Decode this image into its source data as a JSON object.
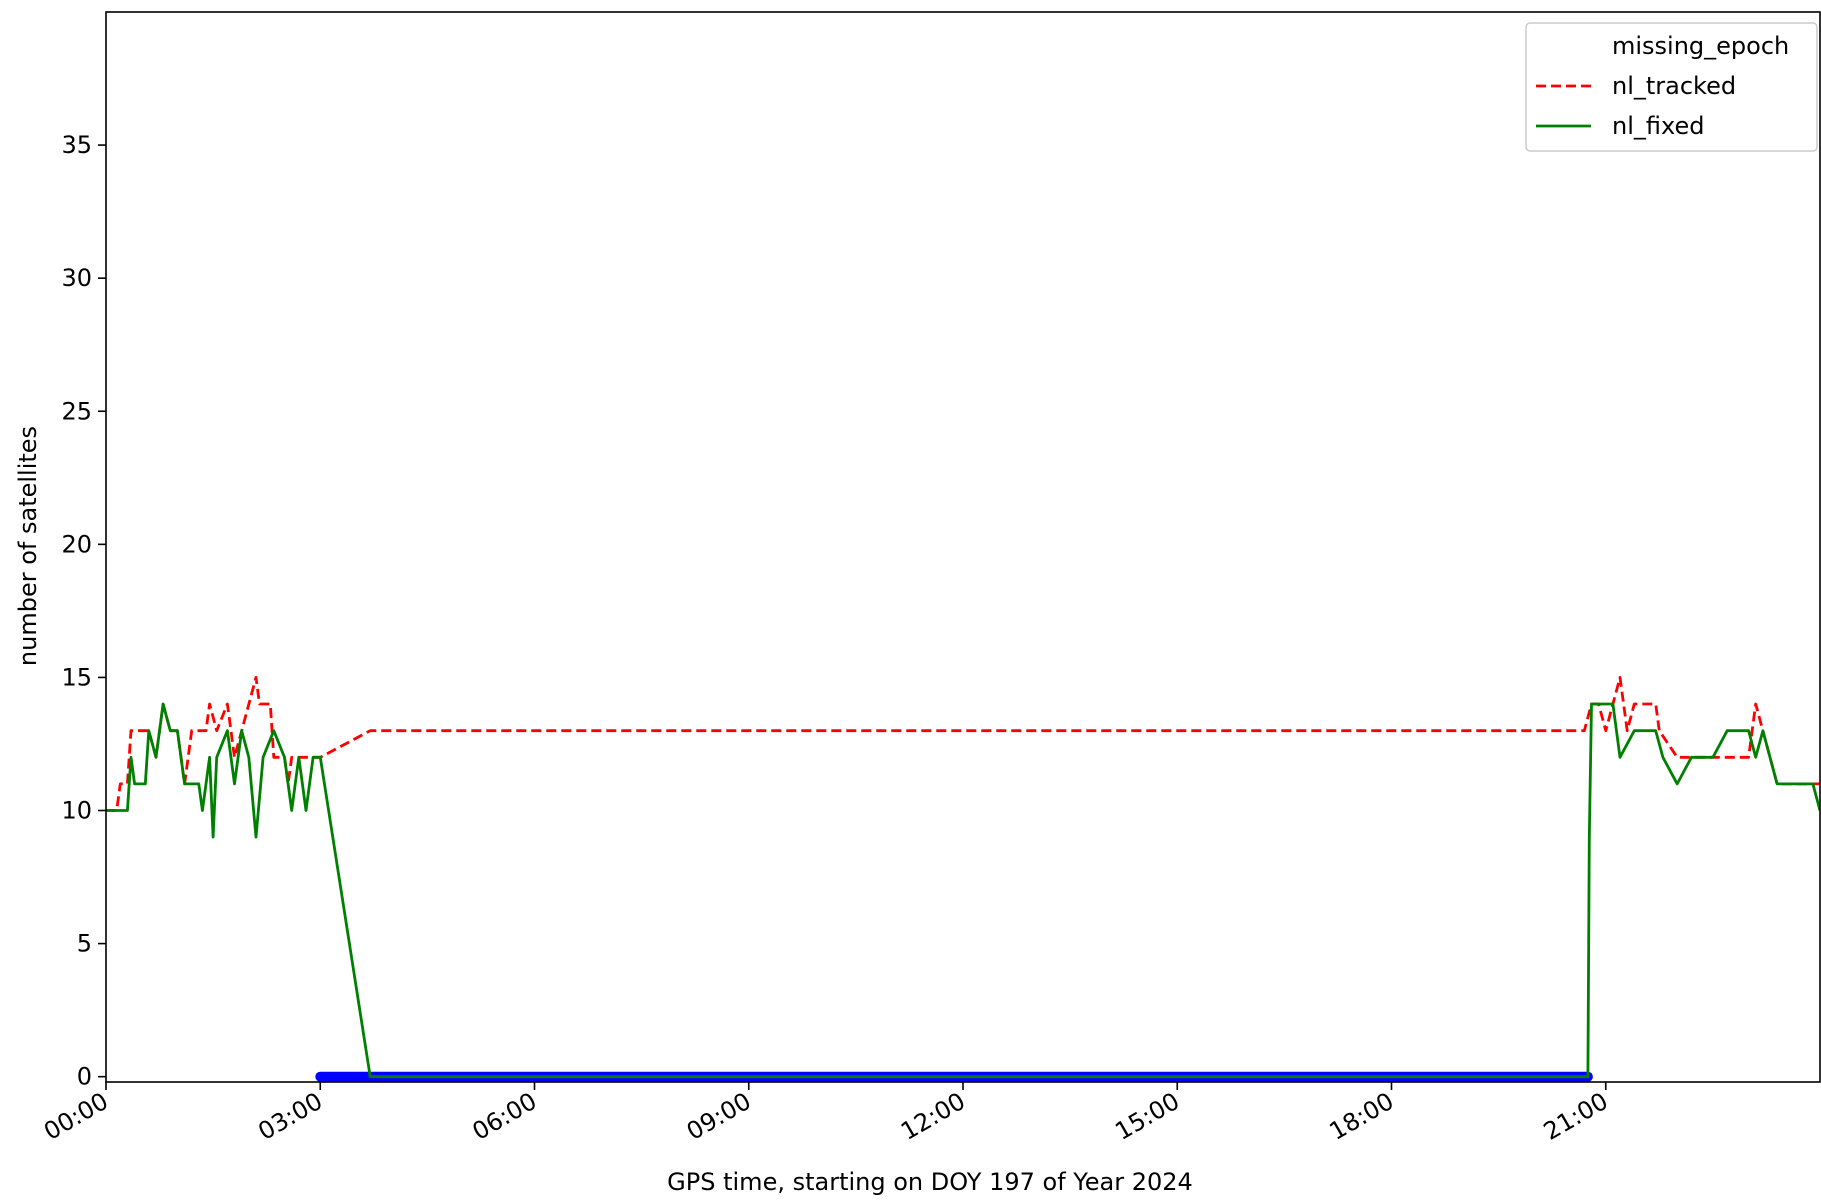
{
  "chart_data": {
    "type": "line",
    "ylabel": "number of satellites",
    "xlabel": "GPS time, starting on DOY 197 of Year 2024",
    "xlim": [
      0,
      24
    ],
    "ylim": [
      -0.2,
      40
    ],
    "xticks": [
      {
        "value": 0,
        "label": "00:00"
      },
      {
        "value": 3,
        "label": "03:00"
      },
      {
        "value": 6,
        "label": "06:00"
      },
      {
        "value": 9,
        "label": "09:00"
      },
      {
        "value": 12,
        "label": "12:00"
      },
      {
        "value": 15,
        "label": "15:00"
      },
      {
        "value": 18,
        "label": "18:00"
      },
      {
        "value": 21,
        "label": "21:00"
      }
    ],
    "yticks": [
      0,
      5,
      10,
      15,
      20,
      25,
      30,
      35
    ],
    "legend": "upper right",
    "series": [
      {
        "name": "missing_epoch",
        "color": "#0000ff",
        "marker": "o",
        "x": [
          3.0,
          20.75
        ],
        "values": [
          0,
          0
        ]
      },
      {
        "name": "nl_tracked",
        "color": "#ff0000",
        "linestyle": "dashed",
        "x": [
          0,
          0.15,
          0.2,
          0.3,
          0.35,
          0.6,
          0.7,
          0.8,
          0.9,
          1.0,
          1.05,
          1.1,
          1.2,
          1.4,
          1.45,
          1.55,
          1.7,
          1.8,
          1.9,
          2.1,
          2.15,
          2.3,
          2.35,
          2.5,
          2.55,
          2.6,
          3.0,
          3.7,
          20.7,
          20.8,
          20.9,
          21.0,
          21.2,
          21.3,
          21.4,
          21.7,
          21.75,
          22.0,
          23.0,
          23.1,
          23.3,
          23.4,
          24
        ],
        "values": [
          10,
          10,
          11,
          11,
          13,
          13,
          12,
          14,
          13,
          13,
          12,
          11,
          13,
          13,
          14,
          13,
          14,
          12,
          13,
          15,
          14,
          14,
          12,
          12,
          11,
          12,
          12,
          13,
          13,
          14,
          14,
          13,
          15,
          13,
          14,
          14,
          13,
          12,
          12,
          14,
          12,
          11,
          11
        ]
      },
      {
        "name": "nl_fixed",
        "color": "#008000",
        "linestyle": "solid",
        "x": [
          0,
          0.3,
          0.35,
          0.4,
          0.55,
          0.6,
          0.7,
          0.8,
          0.9,
          1.0,
          1.05,
          1.1,
          1.3,
          1.35,
          1.45,
          1.5,
          1.55,
          1.7,
          1.8,
          1.9,
          2.0,
          2.1,
          2.2,
          2.35,
          2.5,
          2.6,
          2.7,
          2.8,
          2.9,
          3.0,
          3.7,
          20.75,
          20.77,
          20.8,
          21.1,
          21.2,
          21.4,
          21.7,
          21.8,
          22.0,
          22.2,
          22.5,
          22.7,
          23.0,
          23.1,
          23.2,
          23.3,
          23.4,
          23.9,
          24
        ],
        "values": [
          10,
          10,
          12,
          11,
          11,
          13,
          12,
          14,
          13,
          13,
          12,
          11,
          11,
          10,
          12,
          9,
          12,
          13,
          11,
          13,
          12,
          9,
          12,
          13,
          12,
          10,
          12,
          10,
          12,
          12,
          0,
          0,
          9,
          14,
          14,
          12,
          13,
          13,
          12,
          11,
          12,
          12,
          13,
          13,
          12,
          13,
          12,
          11,
          11,
          10
        ]
      }
    ]
  }
}
